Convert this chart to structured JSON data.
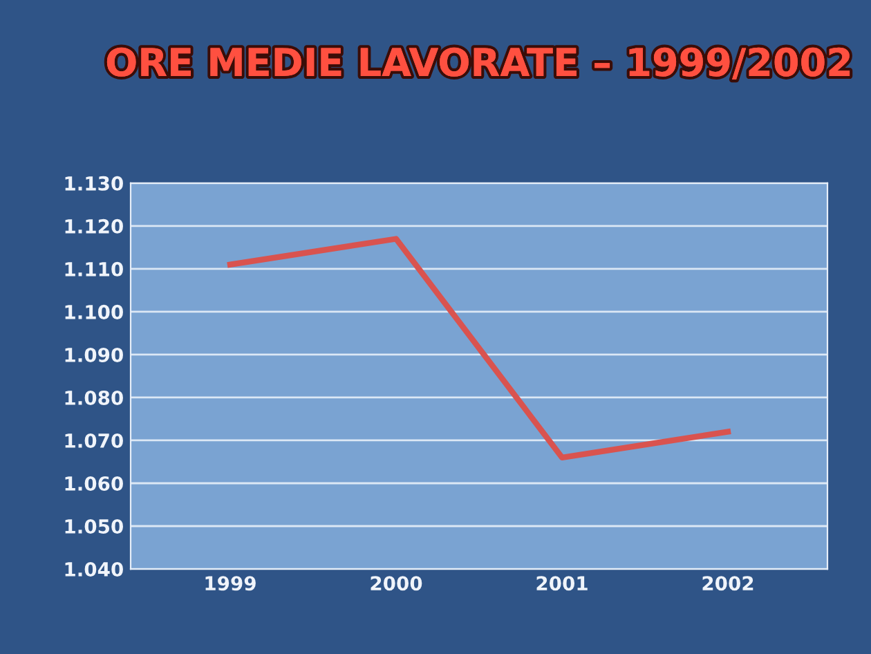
{
  "chart_data": {
    "type": "line",
    "title": "ORE MEDIE LAVORATE – 1999/2002",
    "categories": [
      "1999",
      "2000",
      "2001",
      "2002"
    ],
    "series": [
      {
        "color": "#d9534f",
        "values": [
          1111,
          1117,
          1066,
          1072
        ]
      }
    ],
    "ylim": [
      1040,
      1130
    ],
    "yticks": [
      {
        "value": 1040,
        "label": "1.040"
      },
      {
        "value": 1050,
        "label": "1.050"
      },
      {
        "value": 1060,
        "label": "1.060"
      },
      {
        "value": 1070,
        "label": "1.070"
      },
      {
        "value": 1080,
        "label": "1.080"
      },
      {
        "value": 1090,
        "label": "1.090"
      },
      {
        "value": 1100,
        "label": "1.100"
      },
      {
        "value": 1110,
        "label": "1.110"
      },
      {
        "value": 1120,
        "label": "1.120"
      },
      {
        "value": 1130,
        "label": "1.130"
      }
    ],
    "grid": "y",
    "marker": "none",
    "line_style": "solid"
  }
}
